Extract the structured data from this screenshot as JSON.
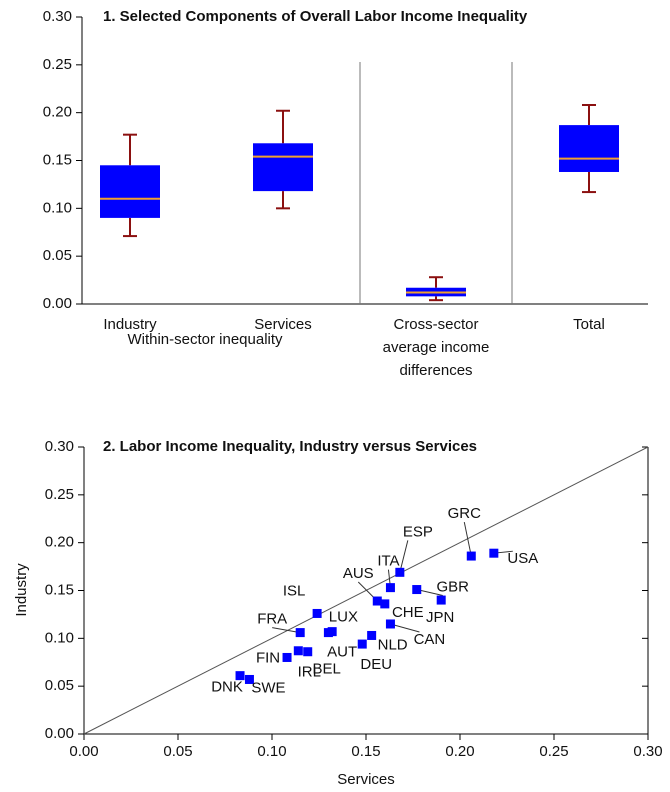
{
  "chart_data": [
    {
      "type": "box",
      "title": "1. Selected Components of Overall Labor Income Inequality",
      "categories": [
        "Industry",
        "Services",
        "Cross-sector average income differences",
        "Total"
      ],
      "group_label": "Within-sector inequality",
      "ylim": [
        0,
        0.3
      ],
      "yticks": [
        {
          "value": 0,
          "label": "0.00"
        },
        {
          "value": 0.05,
          "label": "0.05"
        },
        {
          "value": 0.1,
          "label": "0.10"
        },
        {
          "value": 0.15,
          "label": "0.15"
        },
        {
          "value": 0.2,
          "label": "0.20"
        },
        {
          "value": 0.25,
          "label": "0.25"
        },
        {
          "value": 0.3,
          "label": "0.30"
        }
      ],
      "whisker_low": [
        0.071,
        0.1,
        0.004,
        0.117
      ],
      "q1": [
        0.09,
        0.118,
        0.008,
        0.138
      ],
      "median": [
        0.11,
        0.154,
        0.012,
        0.152
      ],
      "q3": [
        0.145,
        0.168,
        0.017,
        0.187
      ],
      "whisker_high": [
        0.177,
        0.202,
        0.028,
        0.208
      ],
      "color": "#0000ff",
      "median_color": "#f0a030",
      "whisker_color": "#8b1010"
    },
    {
      "type": "scatter",
      "title": "2. Labor Income Inequality, Industry versus Services",
      "x_label": "Services",
      "y_label": "Industry",
      "xlim": [
        0,
        0.3
      ],
      "ylim": [
        0,
        0.3
      ],
      "xticks": [
        {
          "value": 0,
          "label": "0.00"
        },
        {
          "value": 0.05,
          "label": "0.05"
        },
        {
          "value": 0.1,
          "label": "0.10"
        },
        {
          "value": 0.15,
          "label": "0.15"
        },
        {
          "value": 0.2,
          "label": "0.20"
        },
        {
          "value": 0.25,
          "label": "0.25"
        },
        {
          "value": 0.3,
          "label": "0.30"
        }
      ],
      "yticks": [
        {
          "value": 0,
          "label": "0.00"
        },
        {
          "value": 0.05,
          "label": "0.05"
        },
        {
          "value": 0.1,
          "label": "0.10"
        },
        {
          "value": 0.15,
          "label": "0.15"
        },
        {
          "value": 0.2,
          "label": "0.20"
        },
        {
          "value": 0.25,
          "label": "0.25"
        },
        {
          "value": 0.3,
          "label": "0.30"
        }
      ],
      "diagonal": true,
      "color": "#0000ff",
      "labels": [
        "GRC",
        "USA",
        "ESP",
        "ITA",
        "AUS",
        "GBR",
        "JPN",
        "ISL",
        "FRA",
        "LUX",
        "CHE",
        "CAN",
        "NLD",
        "DEU",
        "AUT",
        "IRL",
        "BEL",
        "FIN",
        "DNK",
        "SWE"
      ],
      "x": [
        0.206,
        0.218,
        0.168,
        0.163,
        0.156,
        0.177,
        0.19,
        0.124,
        0.115,
        0.13,
        0.16,
        0.163,
        0.153,
        0.148,
        0.132,
        0.114,
        0.119,
        0.108,
        0.083,
        0.088
      ],
      "y": [
        0.186,
        0.189,
        0.169,
        0.153,
        0.139,
        0.151,
        0.14,
        0.126,
        0.106,
        0.106,
        0.136,
        0.115,
        0.103,
        0.094,
        0.107,
        0.087,
        0.086,
        0.08,
        0.061,
        0.057
      ]
    }
  ]
}
